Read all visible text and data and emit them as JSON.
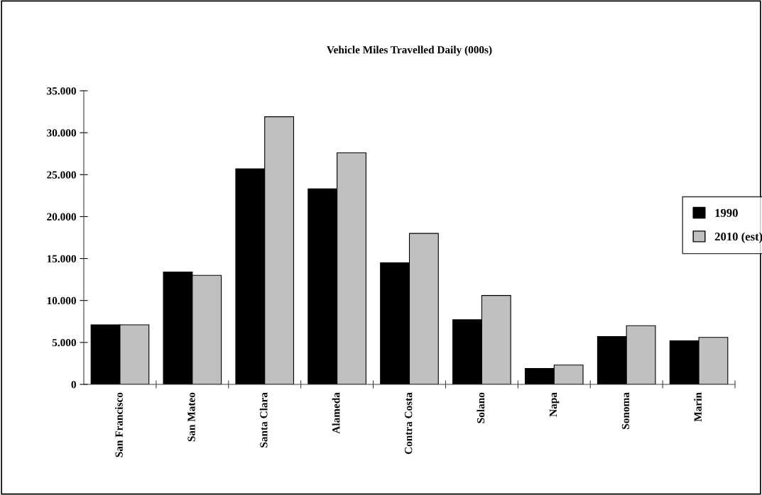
{
  "chart_data": {
    "type": "bar",
    "title": "Vehicle Miles Travelled Daily (000s)",
    "categories": [
      "San Francisco",
      "San Mateo",
      "Santa Clara",
      "Alameda",
      "Contra Costa",
      "Solano",
      "Napa",
      "Sonoma",
      "Marin"
    ],
    "series": [
      {
        "name": "1990",
        "color": "#000000",
        "values": [
          7100,
          13400,
          25700,
          23300,
          14500,
          7700,
          1900,
          5700,
          5200
        ]
      },
      {
        "name": "2010 (est)",
        "color": "#c0c0c0",
        "values": [
          7100,
          13000,
          31900,
          27600,
          18000,
          10600,
          2300,
          7000,
          5600
        ]
      }
    ],
    "ylim": [
      0,
      35000
    ],
    "yticks": [
      {
        "value": 0,
        "label": "0"
      },
      {
        "value": 5000,
        "label": "5.000"
      },
      {
        "value": 10000,
        "label": "10.000"
      },
      {
        "value": 15000,
        "label": "15.000"
      },
      {
        "value": 20000,
        "label": "20.000"
      },
      {
        "value": 25000,
        "label": "25.000"
      },
      {
        "value": 30000,
        "label": "30.000"
      },
      {
        "value": 35000,
        "label": "35.000"
      }
    ],
    "grid": false,
    "legend": "right"
  }
}
